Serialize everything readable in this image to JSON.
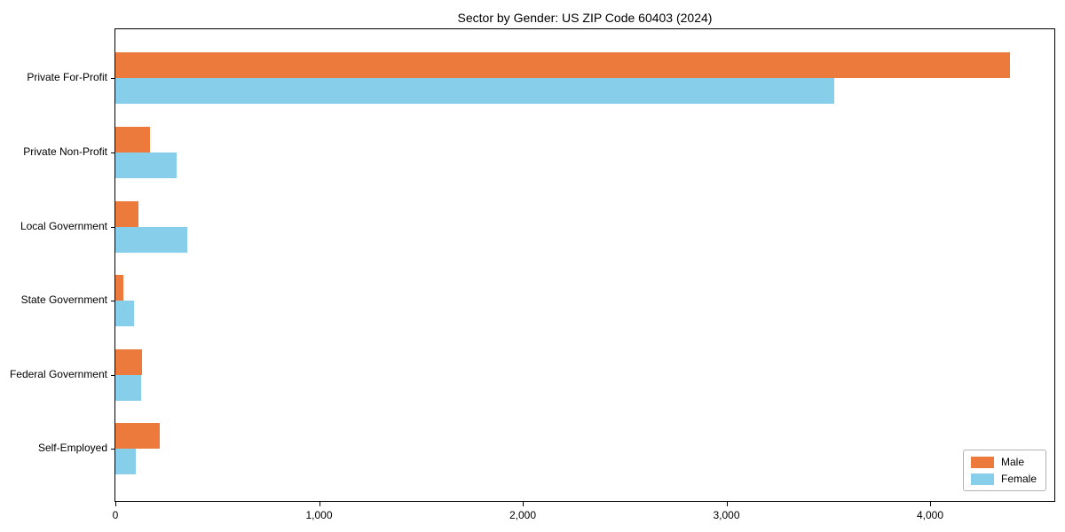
{
  "chart_data": {
    "type": "bar",
    "orientation": "horizontal",
    "title": "Sector by Gender: US ZIP Code 60403 (2024)",
    "categories": [
      "Private For-Profit",
      "Private Non-Profit",
      "Local Government",
      "State Government",
      "Federal Government",
      "Self-Employed"
    ],
    "series": [
      {
        "name": "Male",
        "color": "#ec7a3c",
        "values": [
          4390,
          170,
          115,
          38,
          130,
          220
        ]
      },
      {
        "name": "Female",
        "color": "#87ceeb",
        "values": [
          3530,
          300,
          355,
          90,
          125,
          100
        ]
      }
    ],
    "xlabel": "",
    "ylabel": "",
    "xlim": [
      0,
      4610
    ],
    "xticks": [
      0,
      1000,
      2000,
      3000,
      4000
    ],
    "xtick_labels": [
      "0",
      "1,000",
      "2,000",
      "3,000",
      "4,000"
    ],
    "grid": false,
    "background": "#ffffff",
    "axis_color": "#000000",
    "legend": {
      "position": "lower right",
      "entries": [
        "Male",
        "Female"
      ]
    }
  }
}
